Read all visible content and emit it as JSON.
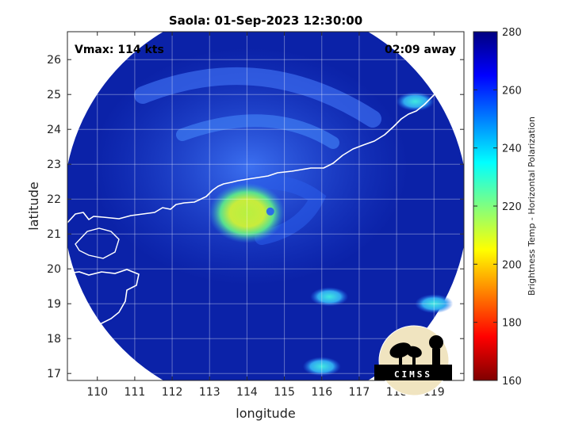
{
  "chart_data": {
    "type": "heatmap",
    "title": "Saola: 01-Sep-2023 12:30:00",
    "xlabel": "longitude",
    "ylabel": "latitude",
    "xlim": [
      109.2,
      119.8
    ],
    "ylim": [
      16.8,
      26.8
    ],
    "xticks": [
      "110",
      "111",
      "112",
      "113",
      "114",
      "115",
      "116",
      "117",
      "118",
      "119"
    ],
    "yticks": [
      "17",
      "18",
      "19",
      "20",
      "21",
      "22",
      "23",
      "24",
      "25",
      "26"
    ],
    "grid": true,
    "annotations": {
      "vmax": "Vmax: 114 kts",
      "time_away": "02:09 away"
    },
    "storm_center": {
      "lon": 114.2,
      "lat": 21.6
    },
    "swath": {
      "center_lon": 114.5,
      "center_lat": 21.8
    },
    "colorbar": {
      "label": "Brightness Temp - Horizontal Polarization",
      "range": [
        160,
        280
      ],
      "ticks": [
        "160",
        "180",
        "200",
        "220",
        "240",
        "260",
        "280"
      ],
      "colormap": "jet"
    },
    "features": [
      {
        "lon": 114.0,
        "lat": 21.6,
        "value": 208
      },
      {
        "lon": 118.5,
        "lat": 24.8,
        "value": 245
      },
      {
        "lon": 119.0,
        "lat": 19.0,
        "value": 240
      },
      {
        "lon": 116.2,
        "lat": 19.2,
        "value": 245
      },
      {
        "lon": 116.0,
        "lat": 17.2,
        "value": 245
      }
    ]
  },
  "logo": {
    "text": "CIMSS"
  },
  "colors": {
    "background": "#0b22a8",
    "coastline": "#ffffff",
    "axis": "#262626"
  }
}
